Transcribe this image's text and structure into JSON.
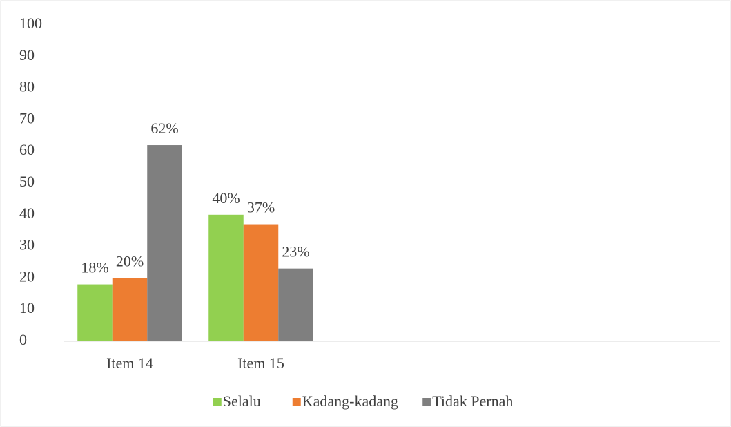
{
  "chart_data": {
    "type": "bar",
    "categories": [
      "Item 14",
      "Item 15",
      null,
      null,
      null
    ],
    "series": [
      {
        "name": "Selalu",
        "color": "#92d050",
        "values": [
          18,
          40,
          null,
          null,
          null
        ],
        "value_labels": [
          "18%",
          "40%",
          null,
          null,
          null
        ]
      },
      {
        "name": "Kadang-kadang",
        "color": "#ed7d31",
        "values": [
          20,
          37,
          null,
          null,
          null
        ],
        "value_labels": [
          "20%",
          "37%",
          null,
          null,
          null
        ]
      },
      {
        "name": "Tidak Pernah",
        "color": "#7f7f7f",
        "values": [
          62,
          23,
          null,
          null,
          null
        ],
        "value_labels": [
          "62%",
          "23%",
          null,
          null,
          null
        ]
      }
    ],
    "ylim": [
      0,
      100
    ],
    "yticks": [
      0,
      10,
      20,
      30,
      40,
      50,
      60,
      70,
      80,
      90,
      100
    ],
    "grid": false,
    "legend": "bottom"
  }
}
